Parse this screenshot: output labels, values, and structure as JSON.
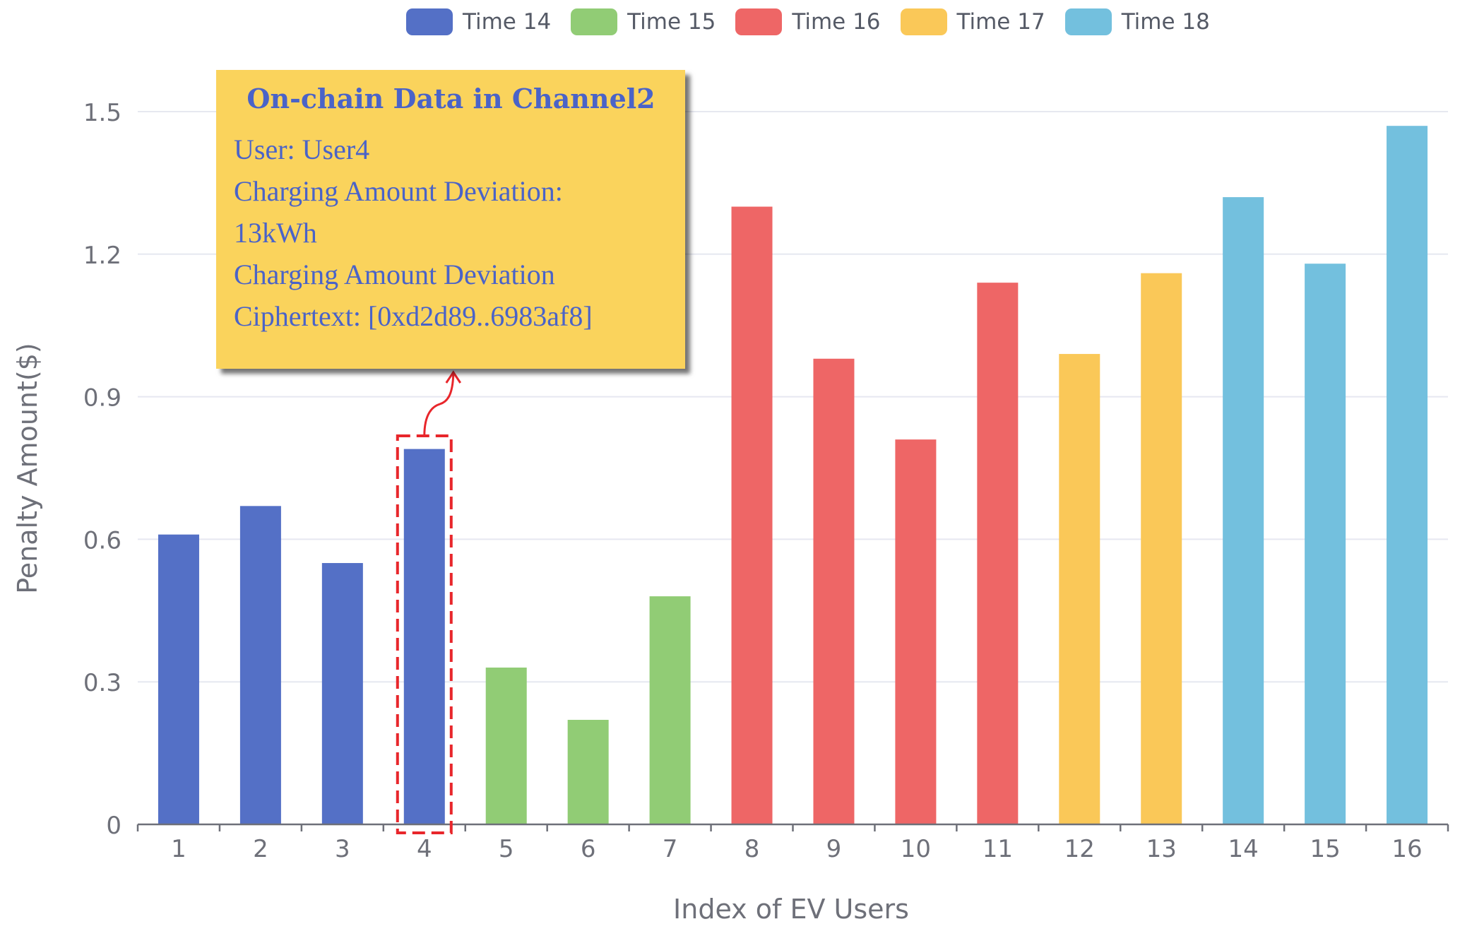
{
  "chart_data": {
    "type": "bar",
    "xlabel": "Index of EV Users",
    "ylabel": "Penalty Amount($)",
    "ylim": [
      0,
      1.5
    ],
    "yticks": [
      "0",
      "0.3",
      "0.6",
      "0.9",
      "1.2",
      "1.5"
    ],
    "grid": "horizontal",
    "legend_position": "top-center",
    "categories": [
      "1",
      "2",
      "3",
      "4",
      "5",
      "6",
      "7",
      "8",
      "9",
      "10",
      "11",
      "12",
      "13",
      "14",
      "15",
      "16"
    ],
    "series": [
      {
        "name": "Time 14",
        "color": "#5470c6",
        "x": [
          "1",
          "2",
          "3",
          "4"
        ],
        "values": [
          0.61,
          0.67,
          0.55,
          0.79
        ]
      },
      {
        "name": "Time 15",
        "color": "#91cc75",
        "x": [
          "5",
          "6",
          "7"
        ],
        "values": [
          0.33,
          0.22,
          0.48
        ]
      },
      {
        "name": "Time 16",
        "color": "#ee6666",
        "x": [
          "8",
          "9",
          "10",
          "11"
        ],
        "values": [
          1.3,
          0.98,
          0.81,
          1.14
        ]
      },
      {
        "name": "Time 17",
        "color": "#fac858",
        "x": [
          "12",
          "13"
        ],
        "values": [
          0.99,
          1.16
        ]
      },
      {
        "name": "Time 18",
        "color": "#73c0de",
        "x": [
          "14",
          "15",
          "16"
        ],
        "values": [
          1.32,
          1.18,
          1.47
        ]
      }
    ],
    "highlight_category": "4",
    "highlight_color": "#e8262b"
  },
  "tooltip": {
    "title": "On-chain Data in Channel2",
    "lines": [
      "User: User4",
      "Charging Amount Deviation:",
      "13kWh",
      "Charging Amount Deviation",
      "Ciphertext: [0xd2d89..6983af8]"
    ]
  }
}
